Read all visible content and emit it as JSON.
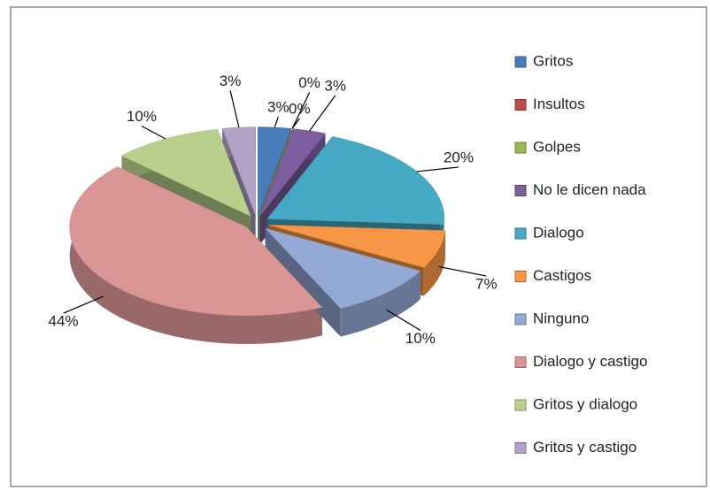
{
  "chart_data": {
    "type": "pie",
    "categories": [
      "Gritos",
      "Insultos",
      "Golpes",
      "No le dicen nada",
      "Dialogo",
      "Castigos",
      "Ninguno",
      "Dialogo y castigo",
      "Gritos y dialogo",
      "Gritos y castigo"
    ],
    "values": [
      3,
      0,
      0,
      3,
      20,
      7,
      10,
      44,
      10,
      3
    ],
    "value_labels": [
      "3%",
      "0%",
      "0%",
      "3%",
      "20%",
      "7%",
      "10%",
      "44%",
      "10%",
      "3%"
    ],
    "colors": [
      "#4a7ebb",
      "#be4b48",
      "#98b954",
      "#7d5fa0",
      "#46aac5",
      "#f79646",
      "#95a9d6",
      "#d99694",
      "#b9d08c",
      "#b3a2c7"
    ],
    "legend": "right"
  }
}
